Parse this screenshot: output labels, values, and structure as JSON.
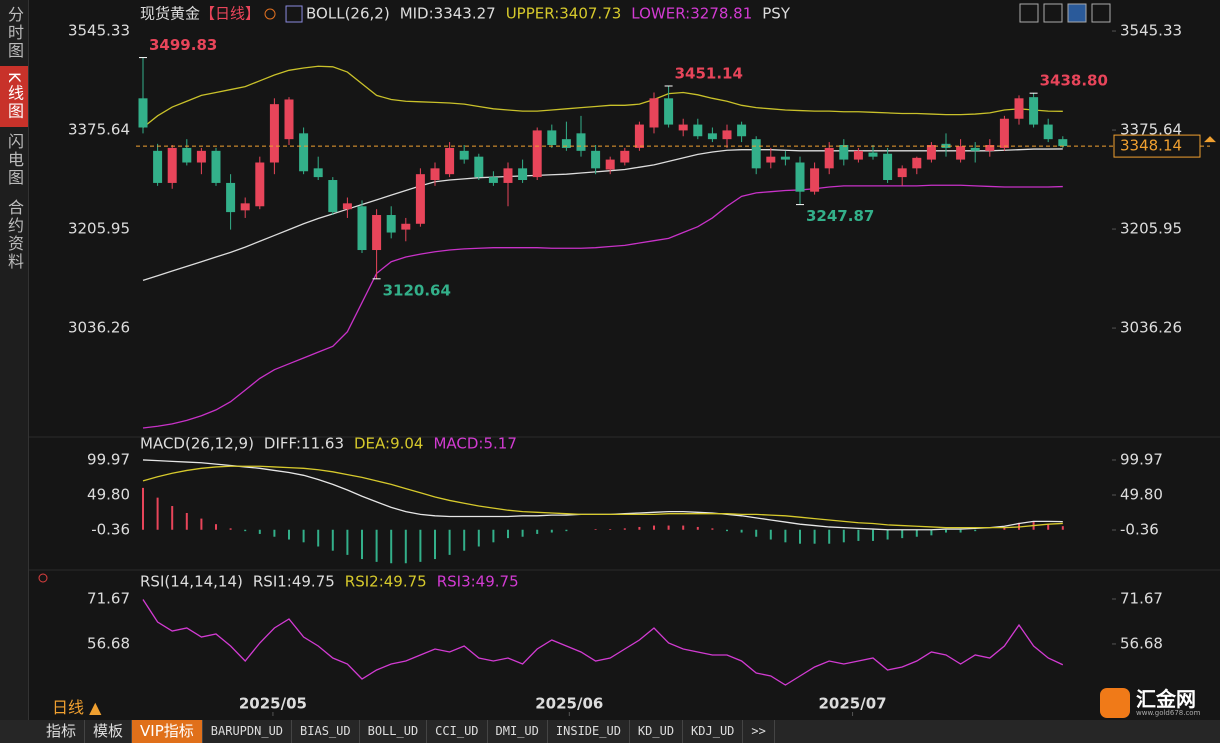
{
  "sidebar": [
    "分时图",
    "K线图",
    "闪电图",
    "合约资料"
  ],
  "period": "日线 ▲",
  "toolbar": [
    "指标",
    "模板",
    "VIP指标",
    "BARUPDN_UD",
    "BIAS_UD",
    "BOLL_UD",
    "CCI_UD",
    "DMI_UD",
    "INSIDE_UD",
    "KD_UD",
    "KDJ_UD",
    ">>"
  ],
  "logo": {
    "name": "汇金网",
    "url": "www.gold678.com"
  },
  "chart_data": [
    {
      "type": "candlestick",
      "title": "现货黄金",
      "period": "【日线】",
      "legend": [
        {
          "text": "BOLL(26,2)",
          "color": "#dddddd"
        },
        {
          "text": "MID:3343.27",
          "color": "#dddddd"
        },
        {
          "text": "UPPER:3407.73",
          "color": "#d6c92c"
        },
        {
          "text": "LOWER:3278.81",
          "color": "#d23bd2"
        },
        {
          "text": "PSY",
          "color": "#dddddd"
        }
      ],
      "up_color": "#e8455a",
      "down_color": "#33b08a",
      "candles": [
        [
          3430,
          3499.83,
          3370,
          3380
        ],
        [
          3340,
          3352,
          3280,
          3285
        ],
        [
          3285,
          3350,
          3275,
          3345
        ],
        [
          3345,
          3360,
          3315,
          3320
        ],
        [
          3320,
          3345,
          3300,
          3340
        ],
        [
          3340,
          3345,
          3280,
          3285
        ],
        [
          3285,
          3300,
          3205,
          3235
        ],
        [
          3238,
          3260,
          3225,
          3250
        ],
        [
          3245,
          3330,
          3240,
          3320
        ],
        [
          3320,
          3430,
          3300,
          3420
        ],
        [
          3360,
          3432,
          3350,
          3428
        ],
        [
          3370,
          3380,
          3300,
          3305
        ],
        [
          3310,
          3330,
          3290,
          3295
        ],
        [
          3290,
          3295,
          3230,
          3235
        ],
        [
          3240,
          3260,
          3225,
          3250
        ],
        [
          3245,
          3255,
          3165,
          3170
        ],
        [
          3170,
          3240,
          3120.64,
          3230
        ],
        [
          3230,
          3245,
          3190,
          3200
        ],
        [
          3205,
          3225,
          3185,
          3215
        ],
        [
          3215,
          3310,
          3210,
          3300
        ],
        [
          3290,
          3320,
          3280,
          3310
        ],
        [
          3300,
          3355,
          3295,
          3345
        ],
        [
          3340,
          3350,
          3318,
          3325
        ],
        [
          3330,
          3335,
          3290,
          3295
        ],
        [
          3295,
          3305,
          3280,
          3285
        ],
        [
          3285,
          3320,
          3245,
          3310
        ],
        [
          3310,
          3325,
          3285,
          3290
        ],
        [
          3295,
          3380,
          3290,
          3375
        ],
        [
          3375,
          3385,
          3345,
          3350
        ],
        [
          3360,
          3390,
          3340,
          3345
        ],
        [
          3370,
          3400,
          3330,
          3340
        ],
        [
          3340,
          3350,
          3300,
          3310
        ],
        [
          3308,
          3330,
          3300,
          3325
        ],
        [
          3320,
          3345,
          3315,
          3340
        ],
        [
          3345,
          3390,
          3340,
          3385
        ],
        [
          3380,
          3440,
          3370,
          3430
        ],
        [
          3430,
          3451.14,
          3380,
          3385
        ],
        [
          3375,
          3395,
          3365,
          3385
        ],
        [
          3385,
          3395,
          3360,
          3365
        ],
        [
          3370,
          3380,
          3355,
          3360
        ],
        [
          3360,
          3385,
          3345,
          3375
        ],
        [
          3385,
          3390,
          3355,
          3365
        ],
        [
          3360,
          3365,
          3300,
          3310
        ],
        [
          3320,
          3345,
          3310,
          3330
        ],
        [
          3330,
          3340,
          3315,
          3325
        ],
        [
          3320,
          3330,
          3247.87,
          3270
        ],
        [
          3270,
          3320,
          3265,
          3310
        ],
        [
          3310,
          3355,
          3300,
          3345
        ],
        [
          3350,
          3360,
          3315,
          3325
        ],
        [
          3325,
          3345,
          3320,
          3340
        ],
        [
          3337,
          3350,
          3325,
          3330
        ],
        [
          3335,
          3345,
          3285,
          3290
        ],
        [
          3295,
          3315,
          3280,
          3310
        ],
        [
          3310,
          3330,
          3300,
          3328
        ],
        [
          3325,
          3355,
          3320,
          3350
        ],
        [
          3352,
          3370,
          3330,
          3345
        ],
        [
          3325,
          3360,
          3320,
          3348
        ],
        [
          3345,
          3355,
          3320,
          3340
        ],
        [
          3340,
          3360,
          3330,
          3350
        ],
        [
          3345,
          3400,
          3340,
          3395
        ],
        [
          3395,
          3435,
          3385,
          3430
        ],
        [
          3432,
          3438.8,
          3380,
          3385
        ],
        [
          3385,
          3395,
          3355,
          3360
        ],
        [
          3360,
          3365,
          3345,
          3348.14
        ]
      ],
      "series": [
        {
          "color": "#c9c12a",
          "values": [
            3380,
            3400,
            3415,
            3425,
            3435,
            3440,
            3445,
            3450,
            3460,
            3470,
            3478,
            3482,
            3485,
            3484,
            3475,
            3455,
            3435,
            3428,
            3425,
            3424,
            3423,
            3422,
            3420,
            3416,
            3412,
            3410,
            3408,
            3408,
            3410,
            3412,
            3414,
            3416,
            3418,
            3418,
            3420,
            3428,
            3438,
            3440,
            3436,
            3430,
            3425,
            3418,
            3414,
            3412,
            3410,
            3409,
            3408,
            3408,
            3407,
            3407,
            3406,
            3405,
            3404,
            3404,
            3403,
            3402,
            3402,
            3403,
            3405,
            3410,
            3412,
            3410,
            3408,
            3407.73
          ]
        },
        {
          "color": "#dcdcdc",
          "values": [
            3118,
            3126,
            3134,
            3142,
            3150,
            3158,
            3166,
            3175,
            3185,
            3195,
            3205,
            3215,
            3224,
            3232,
            3240,
            3248,
            3256,
            3264,
            3272,
            3280,
            3287,
            3290,
            3292,
            3294,
            3295,
            3296,
            3297,
            3298,
            3299,
            3300,
            3302,
            3304,
            3306,
            3308,
            3312,
            3316,
            3322,
            3328,
            3334,
            3338,
            3341,
            3342,
            3342,
            3342,
            3341,
            3340,
            3340,
            3340,
            3340,
            3340,
            3340,
            3340,
            3340,
            3340,
            3340,
            3340,
            3340,
            3340,
            3340,
            3341,
            3342,
            3343,
            3343,
            3343.27
          ]
        },
        {
          "color": "#c832c8",
          "values": [
            2865,
            2868,
            2872,
            2878,
            2886,
            2896,
            2910,
            2930,
            2950,
            2965,
            2975,
            2985,
            2995,
            3005,
            3030,
            3080,
            3130,
            3150,
            3158,
            3163,
            3167,
            3170,
            3172,
            3173,
            3174,
            3174,
            3174,
            3174,
            3173,
            3173,
            3173,
            3174,
            3176,
            3178,
            3182,
            3186,
            3190,
            3200,
            3210,
            3225,
            3245,
            3262,
            3268,
            3270,
            3272,
            3273,
            3275,
            3278,
            3280,
            3280,
            3280,
            3280,
            3280,
            3280,
            3281,
            3281,
            3281,
            3280,
            3279,
            3278,
            3278,
            3278,
            3278,
            3278.81
          ]
        }
      ],
      "annotations": [
        {
          "value": 3499.83,
          "label": "3499.83"
        },
        {
          "value": 3120.64,
          "label": "3120.64"
        },
        {
          "value": 3451.14,
          "label": "3451.14"
        },
        {
          "value": 3247.87,
          "label": "3247.87"
        },
        {
          "value": 3438.8,
          "label": "3438.80"
        }
      ],
      "last_price_color": "#f0a030",
      "ylim": [
        2853,
        3598.5
      ],
      "yticks": [
        3545.33,
        3375.64,
        3205.95,
        3036.26
      ],
      "xticks": [
        {
          "value": 8.9,
          "label": "2025/05"
        },
        {
          "value": 29.2,
          "label": "2025/06"
        },
        {
          "value": 48.6,
          "label": "2025/07"
        }
      ]
    },
    {
      "type": "macd",
      "legend": [
        {
          "text": "MACD(26,12,9)",
          "color": "#dddddd"
        },
        {
          "text": "DIFF:11.63",
          "color": "#dddddd"
        },
        {
          "text": "DEA:9.04",
          "color": "#d6c92c"
        },
        {
          "text": "MACD:5.17",
          "color": "#d23bd2"
        }
      ],
      "series": [
        {
          "color": "#e6e6e6",
          "values": [
            100,
            99,
            98,
            97,
            96,
            94,
            92,
            90,
            88,
            85,
            82,
            78,
            72,
            65,
            57,
            48,
            40,
            32,
            26,
            22,
            20,
            19,
            19,
            19,
            19,
            19,
            20,
            20,
            21,
            21,
            22,
            22,
            22,
            23,
            24,
            25,
            26,
            26,
            25,
            24,
            22,
            20,
            17,
            14,
            11,
            8,
            6,
            4,
            3,
            2,
            1,
            0,
            0,
            0,
            0,
            1,
            1,
            2,
            3,
            5,
            9,
            12,
            12,
            11.63
          ]
        },
        {
          "color": "#d6c92c",
          "values": [
            70,
            76,
            81,
            85,
            88,
            90,
            91,
            91,
            91,
            90,
            89,
            88,
            86,
            83,
            79,
            75,
            70,
            65,
            59,
            53,
            47,
            42,
            38,
            34,
            31,
            28,
            26,
            25,
            24,
            23,
            22,
            22,
            22,
            22,
            22,
            22,
            23,
            23,
            23,
            23,
            23,
            22,
            22,
            21,
            20,
            18,
            16,
            14,
            12,
            10,
            9,
            7,
            6,
            5,
            4,
            3,
            3,
            3,
            3,
            3,
            4,
            6,
            8,
            9.04
          ]
        }
      ],
      "histogram": {
        "up_color": "#e8455a",
        "down_color": "#33b08a",
        "values": [
          60,
          46,
          34,
          24,
          16,
          8,
          2,
          -2,
          -6,
          -10,
          -14,
          -18,
          -24,
          -30,
          -36,
          -42,
          -46,
          -48,
          -48,
          -46,
          -42,
          -36,
          -30,
          -24,
          -18,
          -12,
          -10,
          -6,
          -4,
          -2,
          0,
          1,
          1,
          2,
          4,
          6,
          6,
          6,
          4,
          2,
          -2,
          -4,
          -10,
          -14,
          -18,
          -20,
          -20,
          -20,
          -18,
          -16,
          -16,
          -14,
          -12,
          -10,
          -8,
          -4,
          -4,
          -2,
          0,
          4,
          10,
          12,
          8,
          5.17
        ]
      },
      "ylim": [
        -50.5,
        107.1
      ],
      "yticks": [
        99.97,
        {
          "value": 49.8,
          "label": "49.80"
        },
        -0.36
      ]
    },
    {
      "type": "line",
      "legend": [
        {
          "text": "RSI(14,14,14)",
          "color": "#dddddd"
        },
        {
          "text": "RSI1:49.75",
          "color": "#dddddd"
        },
        {
          "text": "RSI2:49.75",
          "color": "#d6c92c"
        },
        {
          "text": "RSI3:49.75",
          "color": "#d23bd2"
        }
      ],
      "series": [
        {
          "color": "#d23bd2",
          "values": [
            71.5,
            64,
            61,
            62,
            59,
            60,
            56,
            51,
            57,
            62,
            65,
            59,
            56,
            52,
            50,
            45,
            48,
            50,
            51,
            53,
            55,
            54,
            56,
            52,
            51,
            52,
            50,
            55,
            58,
            56,
            54,
            51,
            52,
            55,
            58,
            62,
            57,
            55,
            54,
            53,
            53,
            51,
            47,
            46,
            43,
            46,
            49,
            51,
            50,
            51,
            52,
            48,
            49,
            51,
            54,
            53,
            50,
            53,
            52,
            56,
            63,
            56,
            52,
            49.75
          ]
        }
      ],
      "ylim": [
        38,
        78
      ],
      "yticks": [
        71.67,
        56.68
      ]
    }
  ]
}
